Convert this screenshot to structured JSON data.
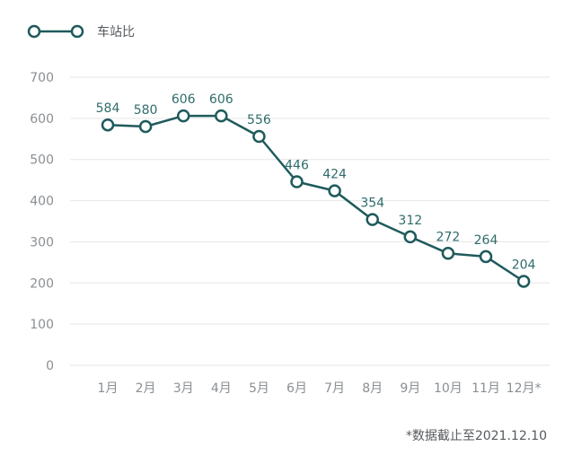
{
  "colors": {
    "series": "#1f5a5c",
    "grid": "#e6e6e6",
    "tick_text": "#8a8f93",
    "data_label": "#2f6c6b",
    "legend_text": "#555a5e"
  },
  "legend": {
    "label": "车站比"
  },
  "footnote": "*数据截止至2021.12.10",
  "chart_data": {
    "type": "line",
    "title": "",
    "xlabel": "",
    "ylabel": "",
    "categories": [
      "1月",
      "2月",
      "3月",
      "4月",
      "5月",
      "6月",
      "7月",
      "8月",
      "9月",
      "10月",
      "11月",
      "12月*"
    ],
    "series": [
      {
        "name": "车站比",
        "values": [
          584,
          580,
          606,
          606,
          556,
          446,
          424,
          354,
          312,
          272,
          264,
          204
        ],
        "marker": "hollow-circle"
      }
    ],
    "ylim": [
      0,
      700
    ],
    "yticks": [
      0,
      100,
      200,
      300,
      400,
      500,
      600,
      700
    ],
    "grid": true,
    "data_labels": true,
    "legend_position": "top-left"
  }
}
